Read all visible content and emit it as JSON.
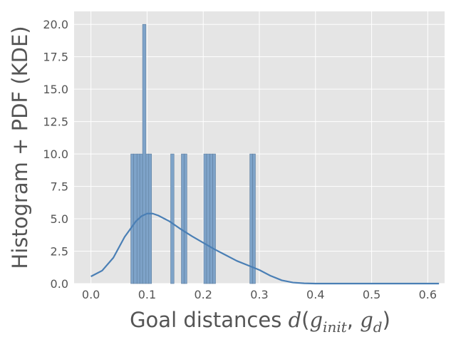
{
  "chart_data": {
    "type": "bar",
    "subtype": "histogram-with-kde",
    "title": "",
    "xlabel_text": "Goal distances ",
    "xlabel_math": {
      "d": "d",
      "open": "(",
      "g1": "g",
      "sub1": "init",
      "comma": ", ",
      "g2": "g",
      "sub2": "d",
      "close": ")"
    },
    "ylabel": "Histogram + PDF (KDE)",
    "xlim": [
      -0.03,
      0.63
    ],
    "ylim": [
      0,
      21
    ],
    "xticks": [
      0.0,
      0.1,
      0.2,
      0.3,
      0.4,
      0.5,
      0.6
    ],
    "xtick_labels": [
      "0.0",
      "0.1",
      "0.2",
      "0.3",
      "0.4",
      "0.5",
      "0.6"
    ],
    "yticks": [
      0.0,
      2.5,
      5.0,
      7.5,
      10.0,
      12.5,
      15.0,
      17.5,
      20.0
    ],
    "ytick_labels": [
      "0.0",
      "2.5",
      "5.0",
      "7.5",
      "10.0",
      "12.5",
      "15.0",
      "17.5",
      "20.0"
    ],
    "grid": true,
    "bin_width": 0.005,
    "bins": [
      {
        "x0": 0.071,
        "x1": 0.076,
        "value": 10
      },
      {
        "x0": 0.076,
        "x1": 0.082,
        "value": 10
      },
      {
        "x0": 0.082,
        "x1": 0.087,
        "value": 10
      },
      {
        "x0": 0.087,
        "x1": 0.092,
        "value": 10
      },
      {
        "x0": 0.092,
        "x1": 0.098,
        "value": 20
      },
      {
        "x0": 0.098,
        "x1": 0.103,
        "value": 10
      },
      {
        "x0": 0.103,
        "x1": 0.108,
        "value": 10
      },
      {
        "x0": 0.142,
        "x1": 0.148,
        "value": 10
      },
      {
        "x0": 0.161,
        "x1": 0.166,
        "value": 10
      },
      {
        "x0": 0.166,
        "x1": 0.171,
        "value": 10
      },
      {
        "x0": 0.201,
        "x1": 0.206,
        "value": 10
      },
      {
        "x0": 0.206,
        "x1": 0.212,
        "value": 10
      },
      {
        "x0": 0.212,
        "x1": 0.217,
        "value": 10
      },
      {
        "x0": 0.217,
        "x1": 0.222,
        "value": 10
      },
      {
        "x0": 0.283,
        "x1": 0.288,
        "value": 10
      },
      {
        "x0": 0.288,
        "x1": 0.293,
        "value": 10
      }
    ],
    "kde": {
      "x": [
        0.0,
        0.02,
        0.04,
        0.06,
        0.08,
        0.09,
        0.1,
        0.11,
        0.12,
        0.14,
        0.16,
        0.18,
        0.2,
        0.22,
        0.24,
        0.26,
        0.28,
        0.3,
        0.32,
        0.34,
        0.36,
        0.38,
        0.4,
        0.42,
        0.45,
        0.5,
        0.55,
        0.62
      ],
      "y": [
        0.55,
        1.0,
        2.0,
        3.6,
        4.8,
        5.2,
        5.4,
        5.4,
        5.25,
        4.8,
        4.2,
        3.65,
        3.15,
        2.65,
        2.2,
        1.75,
        1.4,
        1.05,
        0.6,
        0.25,
        0.08,
        0.02,
        0.0,
        0.0,
        0.0,
        0.0,
        0.0,
        0.0
      ]
    },
    "colors": {
      "background": "#e5e5e5",
      "grid": "#ffffff",
      "bar_fill": "#7ea3c9",
      "bar_edge": "#5f7f9f",
      "kde_line": "#4a7fb5",
      "text": "#555555"
    }
  }
}
